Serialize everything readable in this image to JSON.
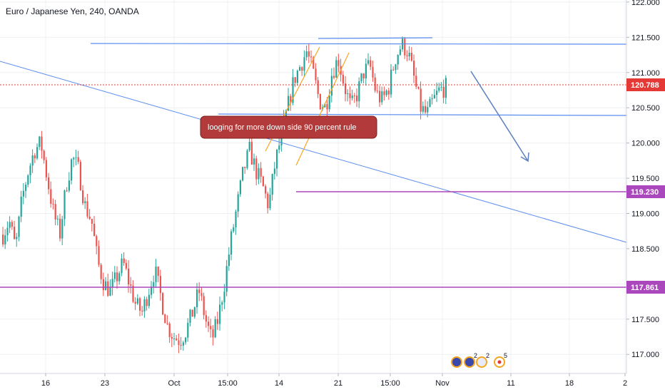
{
  "header": {
    "symbol_title": "Euro / Japanese Yen, 240, OANDA"
  },
  "colors": {
    "up": "#26a69a",
    "down": "#ef5350",
    "trendline": "#5b8def",
    "channel": "#f5a623",
    "support": "#ab47bc",
    "price_line": "#e53935",
    "annotation_bg": "#b23a3a",
    "arrow": "#5b7fbf"
  },
  "axis": {
    "price_ticks": [
      "122.000",
      "121.500",
      "121.000",
      "120.500",
      "120.000",
      "119.500",
      "119.000",
      "118.500",
      "118.000",
      "117.500",
      "117.000"
    ],
    "time_ticks": [
      "16",
      "23",
      "Oct",
      "15:00",
      "14",
      "21",
      "15:00",
      "Nov",
      "11",
      "18",
      "2"
    ]
  },
  "price_tags": {
    "current": "120.788",
    "level_1": "119.230",
    "level_2": "117.861"
  },
  "annotation": {
    "text": "looging for more down side 90 percent rule"
  },
  "events": {
    "count_a": "2",
    "count_b": "2",
    "count_c": "5"
  },
  "chart_data": {
    "type": "candlestick",
    "title": "Euro / Japanese Yen, 240, OANDA",
    "y_axis_side": "right",
    "ylim": [
      116.8,
      122.1
    ],
    "x_ticks": [
      "16",
      "23",
      "Oct",
      "15:00",
      "14",
      "21",
      "15:00",
      "Nov",
      "11",
      "18",
      "2"
    ],
    "y_ticks": [
      122.0,
      121.5,
      121.0,
      120.5,
      120.0,
      119.5,
      119.0,
      118.5,
      118.0,
      117.5,
      117.0
    ],
    "current_price": 120.788,
    "horizontal_levels": [
      119.23,
      117.861
    ],
    "resistance_lines": [
      121.4,
      121.5
    ],
    "support_line": [
      120.36,
      120.34
    ],
    "grid": true,
    "close_path": [
      118.7,
      118.9,
      118.5,
      119.2,
      119.6,
      119.9,
      120.0,
      119.5,
      119.0,
      118.7,
      119.4,
      119.8,
      119.6,
      119.1,
      118.9,
      118.3,
      118.0,
      117.9,
      118.1,
      118.3,
      118.0,
      117.7,
      117.6,
      117.9,
      118.2,
      117.8,
      117.4,
      117.25,
      117.2,
      117.35,
      117.6,
      117.9,
      117.5,
      117.2,
      117.5,
      118.0,
      118.6,
      119.1,
      119.6,
      119.9,
      119.6,
      119.4,
      119.1,
      119.7,
      120.1,
      120.5,
      120.9,
      121.1,
      121.3,
      121.0,
      120.6,
      120.5,
      121.0,
      121.2,
      120.8,
      120.5,
      120.7,
      121.0,
      121.1,
      120.7,
      120.6,
      120.8,
      121.2,
      121.4,
      121.3,
      120.9,
      120.5,
      120.4,
      120.6,
      120.75,
      120.79
    ]
  }
}
